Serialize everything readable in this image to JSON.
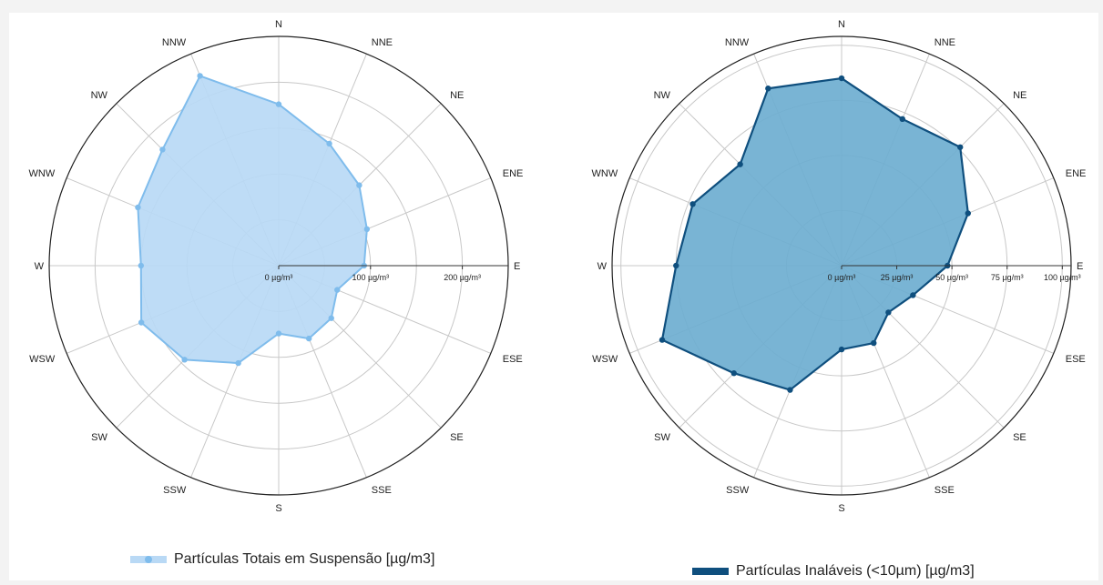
{
  "chart_data": [
    {
      "type": "radar",
      "directions": [
        "N",
        "NNE",
        "NE",
        "ENE",
        "E",
        "ESE",
        "SE",
        "SSE",
        "S",
        "SSW",
        "SW",
        "WSW",
        "W",
        "WNW",
        "NW",
        "NNW"
      ],
      "radial_ticks": [
        0,
        100,
        200
      ],
      "radial_tick_labels": [
        "0 µg/m³",
        "100 µg/m³",
        "200 µg/m³"
      ],
      "rmax": 250,
      "series": [
        {
          "name": "Partículas Totais em Suspensão [µg/m3]",
          "values": [
            176,
            144,
            124,
            104,
            93,
            69,
            81,
            86,
            74,
            115,
            145,
            162,
            150,
            166,
            179,
            224
          ],
          "fill": "#b9d9f5",
          "stroke": "#7fbcec",
          "point": "#7fbcec"
        }
      ],
      "legend_position": "bottom"
    },
    {
      "type": "radar",
      "directions": [
        "N",
        "NNE",
        "NE",
        "ENE",
        "E",
        "ESE",
        "SE",
        "SSE",
        "S",
        "SSW",
        "SW",
        "WSW",
        "W",
        "WNW",
        "NW",
        "NNW"
      ],
      "radial_ticks": [
        0,
        25,
        50,
        75,
        100
      ],
      "radial_tick_labels": [
        "0 µg/m³",
        "25 µg/m³",
        "50 µg/m³",
        "75 µg/m³",
        "100 µg/m³"
      ],
      "rmax": 104,
      "series": [
        {
          "name": "Partículas Inaláveis (<10µm) [µg/m3]",
          "values": [
            85,
            72,
            76,
            62,
            48,
            35,
            30,
            38,
            38,
            61,
            69,
            88,
            75,
            73,
            65,
            87
          ],
          "fill": "#6eaed0",
          "stroke": "#0f4f7e",
          "point": "#0f4f7e"
        }
      ],
      "legend_position": "bottom"
    }
  ]
}
